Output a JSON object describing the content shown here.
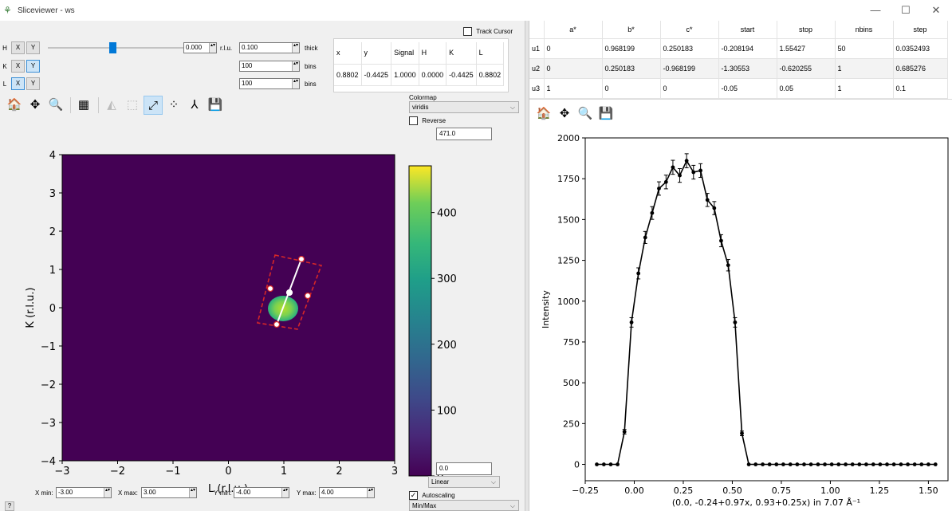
{
  "window": {
    "title": "Sliceviewer - ws",
    "minimize": "—",
    "maximize": "☐",
    "close": "✕"
  },
  "dims": [
    {
      "label": "H",
      "x_active": false,
      "y_active": false
    },
    {
      "label": "K",
      "x_active": false,
      "y_active": true
    },
    {
      "label": "L",
      "x_active": true,
      "y_active": false
    }
  ],
  "dim_buttons": {
    "x": "X",
    "y": "Y"
  },
  "slice": {
    "value": "0.000",
    "unit": "r.l.u.",
    "thickness": "0.100",
    "thick_label": "thick",
    "bins_k": "100",
    "bins_l": "100",
    "bins_label": "bins",
    "slider_fraction": 0.48
  },
  "track_cursor": {
    "label": "Track Cursor",
    "checked": false
  },
  "cursor_info": {
    "headers": [
      "x",
      "y",
      "Signal",
      "H",
      "K",
      "L"
    ],
    "values": [
      "0.8802",
      "-0.4425",
      "1.0000",
      "0.0000",
      "-0.4425",
      "0.8802"
    ]
  },
  "toolbar_left": [
    "home-icon",
    "pan-icon",
    "zoom-icon",
    "grid-icon",
    "line-plots-icon",
    "region-select-icon",
    "line-cut-icon",
    "peaks-icon",
    "nonortho-icon",
    "save-icon"
  ],
  "toolbar_glyphs": {
    "home": "🏠",
    "pan": "✥",
    "zoom": "🔍",
    "grid": "▦",
    "lineplots": "◭",
    "region": "⬚",
    "linecut": "⤢",
    "peaks": "⁘",
    "nonortho": "⅄",
    "save": "💾"
  },
  "colormap": {
    "label": "Colormap",
    "selected": "viridis",
    "reverse_label": "Reverse",
    "reverse_checked": false,
    "max": "471.0",
    "min": "0.0",
    "scale": "Linear",
    "autoscale_label": "Autoscaling",
    "autoscale_checked": true,
    "autoscale_mode": "Min/Max",
    "ticks": [
      "0",
      "100",
      "200",
      "300",
      "400"
    ],
    "range": [
      0,
      471
    ]
  },
  "image_plot": {
    "xlabel": "L (r.l.u.)",
    "ylabel": "K (r.l.u.)",
    "xticks": [
      "−3",
      "−2",
      "−1",
      "0",
      "1",
      "2",
      "3"
    ],
    "yticks": [
      "4",
      "3",
      "2",
      "1",
      "0",
      "−1",
      "−2",
      "−3",
      "−4"
    ],
    "xlim": [
      -3,
      3
    ],
    "ylim": [
      -4,
      4
    ],
    "blob_center": [
      0.97,
      0.0
    ],
    "line_start": [
      0.88,
      -0.44
    ],
    "line_end": [
      1.34,
      1.27
    ]
  },
  "limits": {
    "xmin_label": "X min:",
    "xmin": "-3.00",
    "xmax_label": "X max:",
    "xmax": "3.00",
    "ymin_label": "Y min:",
    "ymin": "-4.00",
    "ymax_label": "Y max:",
    "ymax": "4.00"
  },
  "help_button": "?",
  "cut_table": {
    "headers": [
      "",
      "a*",
      "b*",
      "c*",
      "start",
      "stop",
      "nbins",
      "step"
    ],
    "rows": [
      [
        "u1",
        "0",
        "0.968199",
        "0.250183",
        "-0.208194",
        "1.55427",
        "50",
        "0.0352493"
      ],
      [
        "u2",
        "0",
        "0.250183",
        "-0.968199",
        "-1.30553",
        "-0.620255",
        "1",
        "0.685276"
      ],
      [
        "u3",
        "1",
        "0",
        "0",
        "-0.05",
        "0.05",
        "1",
        "0.1"
      ]
    ]
  },
  "toolbar_right": [
    "home-icon",
    "pan-icon",
    "zoom-icon",
    "save-icon"
  ],
  "chart_data": {
    "type": "line",
    "xlabel": "(0.0, -0.24+0.97x, 0.93+0.25x) in 7.07 Å⁻¹",
    "ylabel": "Intensity",
    "xlim": [
      -0.25,
      1.6
    ],
    "ylim": [
      -100,
      2000
    ],
    "xticks": [
      "−0.25",
      "0.00",
      "0.25",
      "0.50",
      "0.75",
      "1.00",
      "1.25",
      "1.50"
    ],
    "yticks": [
      "0",
      "250",
      "500",
      "750",
      "1000",
      "1250",
      "1500",
      "1750",
      "2000"
    ],
    "x": [
      -0.191,
      -0.155,
      -0.12,
      -0.085,
      -0.05,
      -0.014,
      0.021,
      0.056,
      0.091,
      0.126,
      0.162,
      0.197,
      0.232,
      0.267,
      0.302,
      0.338,
      0.373,
      0.408,
      0.443,
      0.479,
      0.514,
      0.549,
      0.584,
      0.619,
      0.655,
      0.69,
      0.725,
      0.76,
      0.796,
      0.831,
      0.866,
      0.901,
      0.937,
      0.972,
      1.007,
      1.042,
      1.078,
      1.113,
      1.148,
      1.183,
      1.219,
      1.254,
      1.289,
      1.324,
      1.36,
      1.395,
      1.43,
      1.465,
      1.5,
      1.536
    ],
    "y": [
      0,
      0,
      0,
      0,
      200,
      870,
      1170,
      1390,
      1540,
      1690,
      1730,
      1820,
      1770,
      1860,
      1790,
      1800,
      1620,
      1570,
      1370,
      1220,
      870,
      190,
      0,
      0,
      0,
      0,
      0,
      0,
      0,
      0,
      0,
      0,
      0,
      0,
      0,
      0,
      0,
      0,
      0,
      0,
      0,
      0,
      0,
      0,
      0,
      0,
      0,
      0,
      0,
      0
    ],
    "yerr": [
      0,
      0,
      0,
      0,
      14,
      29,
      34,
      37,
      39,
      41,
      42,
      43,
      42,
      43,
      42,
      42,
      40,
      40,
      37,
      35,
      29,
      14,
      0,
      0,
      0,
      0,
      0,
      0,
      0,
      0,
      0,
      0,
      0,
      0,
      0,
      0,
      0,
      0,
      0,
      0,
      0,
      0,
      0,
      0,
      0,
      0,
      0,
      0,
      0,
      0
    ]
  }
}
